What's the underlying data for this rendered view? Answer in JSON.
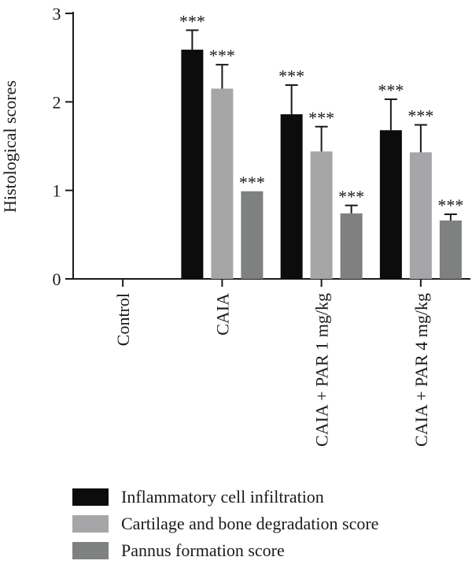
{
  "chart_data": {
    "type": "bar",
    "ylabel": "Histological scores",
    "ylim": [
      0,
      3
    ],
    "yticks": [
      0,
      1,
      2,
      3
    ],
    "categories": [
      "Control",
      "CAIA",
      "CAIA + PAR 1 mg/kg",
      "CAIA + PAR 4 mg/kg"
    ],
    "series": [
      {
        "name": "Inflammatory cell infiltration",
        "color": "#0c0c0c",
        "values": [
          0,
          2.59,
          1.86,
          1.68
        ],
        "errors": [
          0,
          0.22,
          0.33,
          0.35
        ],
        "significance": [
          "",
          "***",
          "***",
          "***"
        ]
      },
      {
        "name": "Cartilage and bone degradation score",
        "color": "#a6a6a8",
        "values": [
          0,
          2.15,
          1.44,
          1.43
        ],
        "errors": [
          0,
          0.27,
          0.28,
          0.31
        ],
        "significance": [
          "",
          "***",
          "***",
          "***"
        ]
      },
      {
        "name": "Pannus formation score",
        "color": "#7f8080",
        "values": [
          0,
          0.99,
          0.74,
          0.66
        ],
        "errors": [
          0,
          0,
          0.09,
          0.07
        ],
        "significance": [
          "",
          "***",
          "***",
          "***"
        ]
      }
    ],
    "legend_position": "bottom"
  }
}
